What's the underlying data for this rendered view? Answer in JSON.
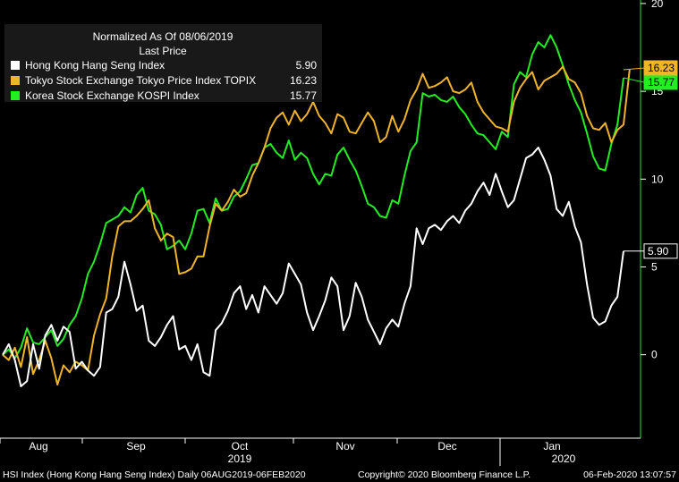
{
  "chart_data": {
    "type": "line",
    "legend": {
      "title": "Normalized As Of 08/06/2019",
      "subtitle": "Last Price",
      "placement": "top-left"
    },
    "ylim": [
      -4.6,
      20.2
    ],
    "yticks": [
      0,
      5,
      10,
      15,
      20
    ],
    "grid": false,
    "x_months": [
      "Aug",
      "Sep",
      "Oct",
      "Nov",
      "Dec",
      "Jan"
    ],
    "x_years": [
      "2019",
      "2020"
    ],
    "footer": {
      "left": "HSI Index (Hong Kong Hang Seng Index)  Daily 06AUG2019-06FEB2020",
      "center": "Copyright© 2020 Bloomberg Finance L.P.",
      "right": "06-Feb-2020 13:07:57"
    },
    "series": [
      {
        "name": "Hong Kong Hang Seng Index",
        "last": "5.90",
        "color": "#ffffff",
        "values": [
          0,
          0.6,
          -0.3,
          -1.8,
          -1.5,
          0.6,
          -0.8,
          1.1,
          1.7,
          0.8,
          1.6,
          1.3,
          -0.8,
          -0.4,
          -0.9,
          -1.2,
          -0.7,
          2.4,
          2.6,
          3.3,
          5.3,
          4.0,
          2.5,
          2.8,
          0.8,
          0.5,
          1.0,
          1.7,
          2.2,
          0.3,
          0.5,
          -0.3,
          0.6,
          -1.0,
          -1.2,
          1.4,
          1.8,
          2.5,
          3.5,
          3.9,
          2.6,
          3.4,
          2.4,
          3.9,
          3.4,
          2.9,
          3.5,
          5.2,
          4.6,
          4.0,
          2.4,
          1.4,
          2.2,
          3.1,
          4.4,
          3.9,
          1.4,
          2.2,
          4.1,
          3.3,
          2.0,
          1.3,
          0.6,
          1.5,
          2.0,
          1.6,
          2.9,
          3.9,
          7.2,
          6.3,
          7.2,
          7.4,
          7.1,
          7.6,
          7.9,
          7.5,
          8.2,
          8.6,
          9.3,
          9.8,
          9.1,
          10.3,
          9.3,
          8.4,
          8.8,
          10.0,
          11.2,
          11.4,
          11.8,
          11.1,
          10.2,
          8.3,
          7.9,
          8.7,
          7.3,
          6.4,
          4.0,
          2.1,
          1.7,
          1.9,
          2.8,
          3.3,
          5.9
        ],
        "x_start": 0
      },
      {
        "name": "Tokyo Stock Exchange Tokyo Price Index TOPIX",
        "last": "16.23",
        "color": "#f0b429",
        "values": [
          0,
          -0.3,
          0.4,
          -0.7,
          1.0,
          -1.1,
          -0.3,
          0.8,
          -0.2,
          -1.7,
          -0.6,
          -1.0,
          -0.4,
          -0.6,
          -0.9,
          1.1,
          2.3,
          3.2,
          5.6,
          7.3,
          7.6,
          7.6,
          7.9,
          8.3,
          8.8,
          7.2,
          6.5,
          6.9,
          6.7,
          4.6,
          4.7,
          4.9,
          5.6,
          5.6,
          7.3,
          8.6,
          8.2,
          8.7,
          9.4,
          9.0,
          9.2,
          10.2,
          10.9,
          11.8,
          12.9,
          13.5,
          13.8,
          13.1,
          13.9,
          13.3,
          13.7,
          14.4,
          13.6,
          13.2,
          12.6,
          13.7,
          13.5,
          12.7,
          12.6,
          13.2,
          13.8,
          13.3,
          12.1,
          12.4,
          13.6,
          12.7,
          13.4,
          14.5,
          15.1,
          16.0,
          15.2,
          15.3,
          15.5,
          15.8,
          15.0,
          14.9,
          15.1,
          15.5,
          14.4,
          13.8,
          13.4,
          13.0,
          12.9,
          12.7,
          14.4,
          15.2,
          15.7,
          16.1,
          15.1,
          15.6,
          15.8,
          16.0,
          16.4,
          15.7,
          15.5,
          14.9,
          13.6,
          12.9,
          12.8,
          13.2,
          12.1,
          12.8,
          13.1,
          16.23
        ],
        "x_start": 0
      },
      {
        "name": "Korea Stock Exchange KOSPI Index",
        "last": "15.77",
        "color": "#22ee22",
        "values": [
          0,
          0.3,
          -0.2,
          0.4,
          1.5,
          0.7,
          0.6,
          1.0,
          1.4,
          0.5,
          0.9,
          1.7,
          2.2,
          3.2,
          4.6,
          5.3,
          6.3,
          7.5,
          7.7,
          7.9,
          8.4,
          8.1,
          9.1,
          9.5,
          8.2,
          8.0,
          7.4,
          6.0,
          6.2,
          6.5,
          6.0,
          6.9,
          8.2,
          8.3,
          7.5,
          8.9,
          8.2,
          8.3,
          9.0,
          9.3,
          10.0,
          10.8,
          10.9,
          11.8,
          12.0,
          11.5,
          11.2,
          12.2,
          11.1,
          11.5,
          11.2,
          10.3,
          9.7,
          10.3,
          10.2,
          11.4,
          11.8,
          11.1,
          10.5,
          9.6,
          8.6,
          8.4,
          7.9,
          7.8,
          8.8,
          8.6,
          10.2,
          11.6,
          12.1,
          14.9,
          14.7,
          14.8,
          14.5,
          14.4,
          14.7,
          14.1,
          13.7,
          13.1,
          12.6,
          12.5,
          12.1,
          11.7,
          12.7,
          12.4,
          15.4,
          16.1,
          15.8,
          17.1,
          17.8,
          17.5,
          18.2,
          17.5,
          16.5,
          15.4,
          14.5,
          13.8,
          12.6,
          11.3,
          10.6,
          10.5,
          12.0,
          13.1,
          15.77
        ],
        "x_start": 0
      }
    ]
  }
}
